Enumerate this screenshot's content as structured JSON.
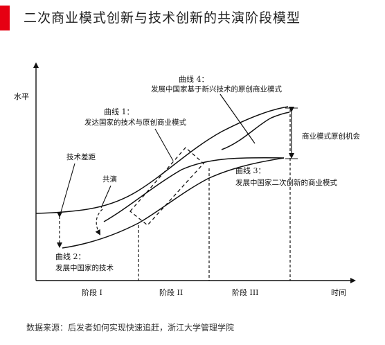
{
  "header": {
    "title": "二次商业模式创新与技术创新的共演阶段模型",
    "accent_color": "#e60012"
  },
  "diagram": {
    "y_axis_label": "水平",
    "x_axis_label": "时间",
    "stages": [
      "阶段 I",
      "阶段 II",
      "阶段 III"
    ],
    "curve4": {
      "name": "曲线 4：",
      "desc": "发展中国家基于新兴技术的原创商业模式"
    },
    "curve1": {
      "name": "曲线 1：",
      "desc": "发达国家的技术与原创商业模式"
    },
    "curve3": {
      "name": "曲线 3：",
      "desc": "发展中国家二次创新的商业模式"
    },
    "curve2": {
      "name": "曲线 2：",
      "desc": "发展中国家的技术"
    },
    "tech_gap": "技术差距",
    "coevolution": "共演",
    "opportunity": "商业模式原创机会"
  },
  "footer": {
    "source": "数据来源：后发者如何实现快速追赶，浙江大学管理学院"
  }
}
